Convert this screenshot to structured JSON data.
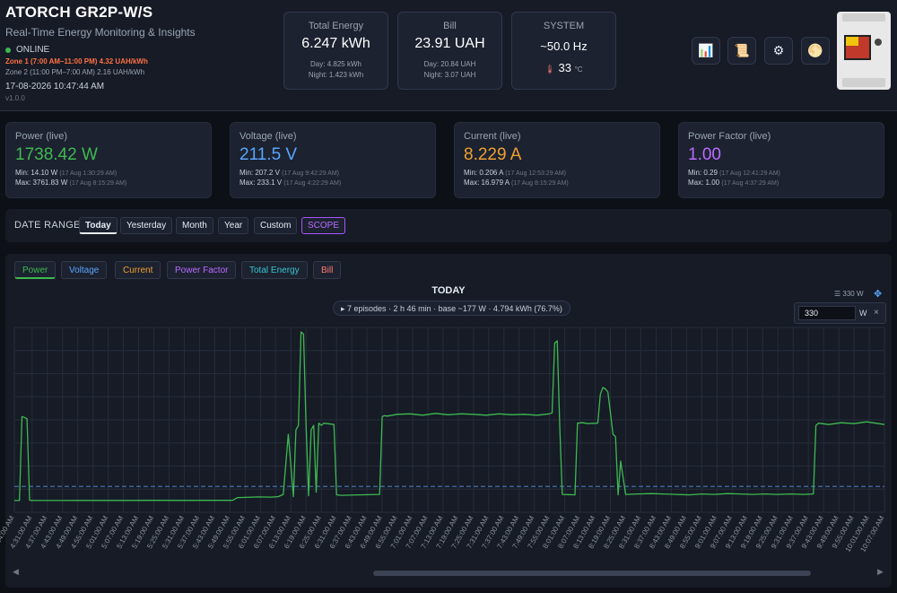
{
  "header": {
    "title": "ATORCH GR2P-W/S",
    "subtitle": "Real-Time Energy Monitoring & Insights",
    "status": "ONLINE",
    "zone1": "Zone 1 (7:00 AM–11:00 PM) 4.32 UAH/kWh",
    "zone2": "Zone 2 (11:00 PM–7:00 AM) 2.16 UAH/kWh",
    "datetime": "17-08-2026 10:47:44 AM",
    "version": "v1.0.0"
  },
  "stats": {
    "energy": {
      "title": "Total Energy",
      "value": "6.247 kWh",
      "day": "Day: 4.825 kWh",
      "night": "Night: 1.423 kWh"
    },
    "bill": {
      "title": "Bill",
      "value": "23.91 UAH",
      "day": "Day: 20.84 UAH",
      "night": "Night: 3.07 UAH"
    },
    "system": {
      "title": "SYSTEM",
      "freq": "~50.0 Hz",
      "temp": "33",
      "temp_unit": "°C"
    }
  },
  "toolbar_icons": [
    "chart-icon",
    "scroll-icon",
    "gear-icon",
    "theme-icon"
  ],
  "live": [
    {
      "title": "Power (live)",
      "value": "1738.42 W",
      "color": "#3fb950",
      "min": "Min: 14.10 W",
      "min_ts": "(17 Aug 1:30:29 AM)",
      "max": "Max: 3761.83 W",
      "max_ts": "(17 Aug 8:15:29 AM)"
    },
    {
      "title": "Voltage (live)",
      "value": "211.5 V",
      "color": "#58a6ff",
      "min": "Min: 207.2 V",
      "min_ts": "(17 Aug 9:42:29 AM)",
      "max": "Max: 233.1 V",
      "max_ts": "(17 Aug 4:22:29 AM)"
    },
    {
      "title": "Current (live)",
      "value": "8.229 A",
      "color": "#f0a030",
      "min": "Min: 0.206 A",
      "min_ts": "(17 Aug 12:53:29 AM)",
      "max": "Max: 16.979 A",
      "max_ts": "(17 Aug 8:15:29 AM)"
    },
    {
      "title": "Power Factor (live)",
      "value": "1.00",
      "color": "#bc6bff",
      "min": "Min: 0.29",
      "min_ts": "(17 Aug 12:41:29 AM)",
      "max": "Max: 1.00",
      "max_ts": "(17 Aug 4:37:29 AM)"
    }
  ],
  "date_range": {
    "label": "DATE RANGE",
    "buttons": [
      "Today",
      "Yesterday",
      "Month",
      "Year",
      "Custom",
      "SCOPE"
    ],
    "active": "Today"
  },
  "chart_tabs": [
    {
      "label": "Power",
      "color": "#3fb950"
    },
    {
      "label": "Voltage",
      "color": "#58a6ff"
    },
    {
      "label": "Current",
      "color": "#f0a030"
    },
    {
      "label": "Power Factor",
      "color": "#bc6bff"
    },
    {
      "label": "Total Energy",
      "color": "#39c5cf"
    },
    {
      "label": "Bill",
      "color": "#ff7b72"
    }
  ],
  "chart_header": {
    "title": "TODAY",
    "summary": "▸ 7 episodes · 2 h 46 min · base ~177 W · 4.794 kWh (76.7%)",
    "threshold_label": "☰ 330 W",
    "threshold_value": "330",
    "threshold_unit": "W"
  },
  "chart_data": {
    "type": "line",
    "title": "TODAY",
    "series": [
      {
        "name": "Power",
        "color": "#3fb950"
      }
    ],
    "threshold": 330,
    "ylim": [
      -250,
      3900
    ],
    "x": [
      "4:24:00 AM",
      "4:26:00 AM",
      "4:27:00 AM",
      "4:28:00 AM",
      "4:29:00 AM",
      "4:30:00 AM",
      "4:31:00 AM",
      "4:43:00 AM",
      "4:50:00 AM",
      "5:00:00 AM",
      "5:10:00 AM",
      "5:20:00 AM",
      "5:30:00 AM",
      "5:40:00 AM",
      "5:50:00 AM",
      "5:52:00 AM",
      "5:58:00 AM",
      "6:00:00 AM",
      "6:05:00 AM",
      "6:08:00 AM",
      "6:10:00 AM",
      "6:12:00 AM",
      "6:14:00 AM",
      "6:15:00 AM",
      "6:16:00 AM",
      "6:17:00 AM",
      "6:18:00 AM",
      "6:19:00 AM",
      "6:20:00 AM",
      "6:21:00 AM",
      "6:22:00 AM",
      "6:23:00 AM",
      "6:24:00 AM",
      "6:25:00 AM",
      "6:26:00 AM",
      "6:30:00 AM",
      "6:31:00 AM",
      "6:33:00 AM",
      "6:40:00 AM",
      "6:48:00 AM",
      "6:49:00 AM",
      "6:50:00 AM",
      "6:51:00 AM",
      "6:55:00 AM",
      "7:00:00 AM",
      "7:05:00 AM",
      "7:10:00 AM",
      "7:15:00 AM",
      "7:20:00 AM",
      "7:25:00 AM",
      "7:30:00 AM",
      "7:35:00 AM",
      "7:40:00 AM",
      "7:45:00 AM",
      "7:50:00 AM",
      "7:55:00 AM",
      "7:56:00 AM",
      "7:57:00 AM",
      "7:58:00 AM",
      "7:59:00 AM",
      "8:00:00 AM",
      "8:05:00 AM",
      "8:06:00 AM",
      "8:08:00 AM",
      "8:10:00 AM",
      "8:14:00 AM",
      "8:15:00 AM",
      "8:16:00 AM",
      "8:17:00 AM",
      "8:18:00 AM",
      "8:20:00 AM",
      "8:21:00 AM",
      "8:22:00 AM",
      "8:23:00 AM",
      "8:25:00 AM",
      "8:30:00 AM",
      "8:35:00 AM",
      "8:40:00 AM",
      "8:45:00 AM",
      "8:50:00 AM",
      "8:55:00 AM",
      "9:00:00 AM",
      "9:05:00 AM",
      "9:10:00 AM",
      "9:15:00 AM",
      "9:20:00 AM",
      "9:25:00 AM",
      "9:30:00 AM",
      "9:35:00 AM",
      "9:39:00 AM",
      "9:40:00 AM",
      "9:41:00 AM",
      "9:45:00 AM",
      "9:50:00 AM",
      "9:55:00 AM",
      "10:00:00 AM",
      "10:07:00 AM"
    ],
    "values": [
      14,
      16,
      1900,
      1880,
      1850,
      20,
      15,
      14,
      15,
      16,
      16,
      17,
      16,
      17,
      18,
      80,
      90,
      95,
      90,
      100,
      150,
      1500,
      100,
      1600,
      1700,
      3800,
      3750,
      1700,
      120,
      1600,
      1700,
      200,
      1750,
      1700,
      1750,
      1720,
      140,
      130,
      140,
      150,
      1900,
      1920,
      1910,
      1950,
      1960,
      1930,
      1970,
      1940,
      1960,
      1950,
      1930,
      1960,
      1940,
      1950,
      1930,
      1960,
      1980,
      3550,
      3600,
      1700,
      150,
      140,
      1750,
      1760,
      1740,
      1750,
      2400,
      2550,
      2520,
      2450,
      1500,
      1450,
      140,
      900,
      150,
      160,
      170,
      160,
      150,
      140,
      160,
      150,
      170,
      160,
      150,
      160,
      150,
      160,
      150,
      160,
      1700,
      1750,
      1720,
      1760,
      1740,
      1780,
      1720
    ]
  },
  "x_ticks": [
    "4:24:00 AM",
    "4:31:00 AM",
    "4:37:00 AM",
    "4:43:00 AM",
    "4:49:00 AM",
    "4:55:00 AM",
    "5:01:00 AM",
    "5:07:00 AM",
    "5:13:00 AM",
    "5:19:00 AM",
    "5:25:00 AM",
    "5:31:00 AM",
    "5:37:00 AM",
    "5:43:00 AM",
    "5:49:00 AM",
    "5:55:00 AM",
    "6:01:00 AM",
    "6:07:00 AM",
    "6:13:00 AM",
    "6:19:00 AM",
    "6:25:00 AM",
    "6:31:00 AM",
    "6:37:00 AM",
    "6:43:00 AM",
    "6:49:00 AM",
    "6:55:00 AM",
    "7:01:00 AM",
    "7:07:00 AM",
    "7:13:00 AM",
    "7:19:00 AM",
    "7:25:00 AM",
    "7:31:00 AM",
    "7:37:00 AM",
    "7:43:00 AM",
    "7:49:00 AM",
    "7:55:00 AM",
    "8:01:00 AM",
    "8:07:00 AM",
    "8:13:00 AM",
    "8:19:00 AM",
    "8:25:00 AM",
    "8:31:00 AM",
    "8:37:00 AM",
    "8:43:00 AM",
    "8:49:00 AM",
    "8:55:00 AM",
    "9:01:00 AM",
    "9:07:00 AM",
    "9:13:00 AM",
    "9:19:00 AM",
    "9:25:00 AM",
    "9:31:00 AM",
    "9:37:00 AM",
    "9:43:00 AM",
    "9:49:00 AM",
    "9:55:00 AM",
    "10:01:00 AM",
    "10:07:00 AM"
  ],
  "colors": {
    "threshold": "#4a7ab8",
    "grid": "#252c3b",
    "tick": "#8b949e"
  }
}
